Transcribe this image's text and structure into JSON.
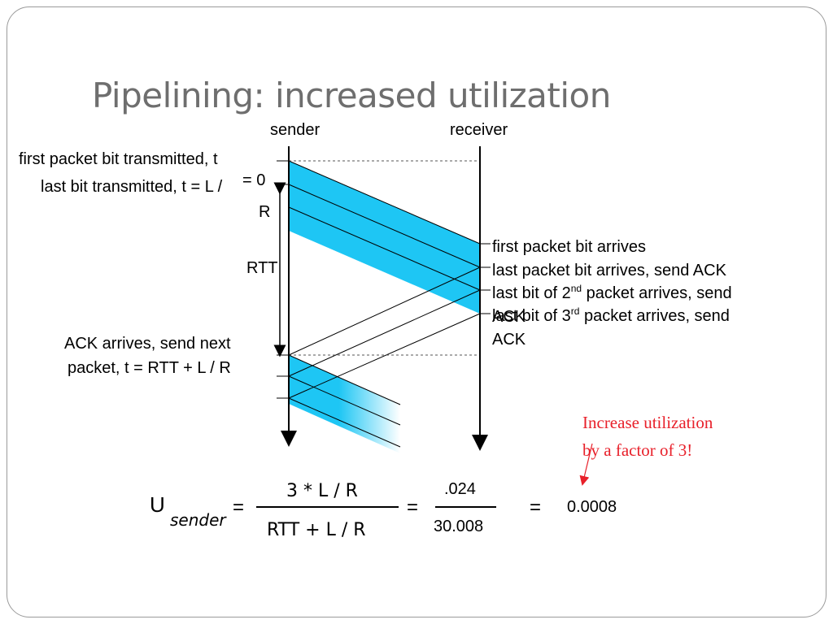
{
  "title": "Pipelining: increased utilization",
  "diagram": {
    "sender_label": "sender",
    "receiver_label": "receiver",
    "first_packet_sent": "first packet bit transmitted, t",
    "first_packet_sent_value": "= 0",
    "last_bit_sent": "last bit transmitted, t = L /",
    "last_bit_sent_denominator": "R",
    "rtt_label": "RTT",
    "ack_arrives_line1": "ACK arrives, send next",
    "ack_arrives_line2": "packet, t = RTT + L / R",
    "first_bit_arrives": "first packet bit arrives",
    "last_bit_arrives": "last packet bit arrives, send ACK",
    "second_packet_prefix": "last bit of 2",
    "second_packet_sup": "nd",
    "second_packet_suffix": " packet arrives, send",
    "second_packet_line2": "ACK",
    "third_packet_prefix": "last bit of 3",
    "third_packet_sup": "rd",
    "third_packet_suffix": " packet arrives, send",
    "third_packet_line2": "ACK",
    "colors": {
      "packet": "#1ec6f4",
      "line": "#000000",
      "annotation": "#e8202a"
    }
  },
  "annotation": {
    "line1": "Increase utilization",
    "line2": "by a factor of 3!"
  },
  "formula": {
    "u": "U",
    "subscript": "sender",
    "eq1": "=",
    "numerator": "3 * L / R",
    "denominator": "RTT + L / R",
    "eq2": "=",
    "num_value": ".024",
    "den_value": "30.008",
    "eq3": "=",
    "result": "0.0008"
  }
}
